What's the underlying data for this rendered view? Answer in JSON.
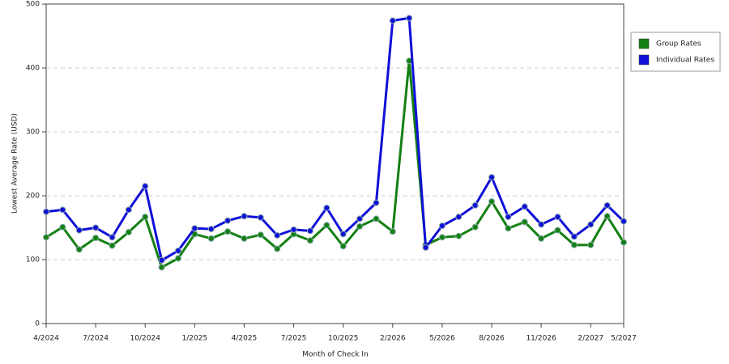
{
  "chart_data": {
    "type": "line",
    "x_label": "Month of Check In",
    "y_label": "Lowest Average Rate (USD)",
    "categories": [
      "4/2024",
      null,
      null,
      "7/2024",
      null,
      null,
      "10/2024",
      null,
      null,
      "1/2025",
      null,
      null,
      "4/2025",
      null,
      null,
      "7/2025",
      null,
      null,
      "10/2025",
      null,
      null,
      "2/2026",
      null,
      null,
      "5/2026",
      null,
      null,
      "8/2026",
      null,
      null,
      "11/2026",
      null,
      null,
      "2/2027",
      null,
      "5/2027"
    ],
    "series": [
      {
        "name": "Group Rates",
        "color": "#138012",
        "values": [
          135,
          151,
          116,
          134,
          122,
          143,
          167,
          88,
          102,
          140,
          133,
          144,
          133,
          139,
          117,
          140,
          130,
          154,
          121,
          152,
          164,
          144,
          411,
          123,
          135,
          137,
          151,
          191,
          149,
          159,
          133,
          146,
          123,
          123,
          168,
          127
        ]
      },
      {
        "name": "Individual Rates",
        "color": "#1010d8",
        "values": [
          175,
          178,
          146,
          150,
          135,
          178,
          215,
          99,
          114,
          149,
          148,
          161,
          168,
          166,
          138,
          147,
          145,
          181,
          140,
          164,
          189,
          474,
          478,
          119,
          153,
          167,
          185,
          229,
          167,
          183,
          155,
          167,
          136,
          155,
          185,
          160
        ]
      }
    ],
    "ylim": [
      0,
      500
    ],
    "yticks": [
      0,
      100,
      200,
      300,
      400,
      500
    ],
    "grid": true,
    "legend": "right"
  }
}
